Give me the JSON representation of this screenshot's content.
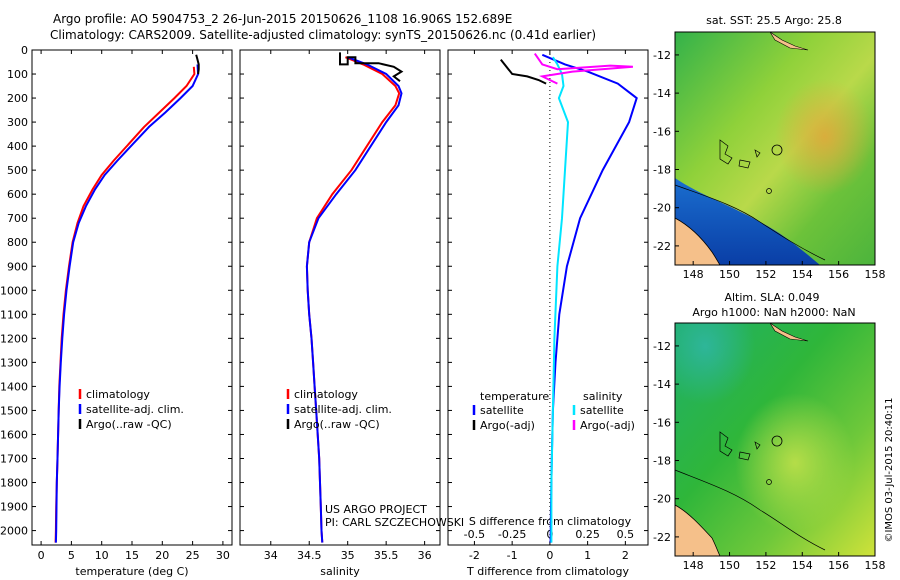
{
  "header": {
    "title_line1": "Argo profile: AO 5904753_2 26-Jun-2015 20150626_1108 16.906S 152.689E",
    "title_line2": "Climatology: CARS2009. Satellite-adjusted climatology: synTS_20150626.nc (0.41d earlier)"
  },
  "colors": {
    "climatology": "#ff0000",
    "satellite": "#0000ff",
    "argo": "#000000",
    "sal_satellite": "#00e5ff",
    "sal_argo": "#ff00ff"
  },
  "shared": {
    "depth_ticks": [
      0,
      100,
      200,
      300,
      400,
      500,
      600,
      700,
      800,
      900,
      1000,
      1100,
      1200,
      1300,
      1400,
      1500,
      1600,
      1700,
      1800,
      1900,
      2000
    ],
    "depth_range": [
      0,
      2060
    ]
  },
  "chart_data": [
    {
      "id": "temperature",
      "type": "line",
      "xlabel": "temperature (deg C)",
      "xlim": [
        -1.5,
        31.5
      ],
      "xticks": [
        0,
        5,
        10,
        15,
        20,
        25,
        30
      ],
      "ylim": [
        0,
        2060
      ],
      "legend": {
        "position": "lower-middle",
        "entries": [
          "climatology",
          "satellite-adj. clim.",
          "Argo(..raw -QC)"
        ]
      },
      "series": [
        {
          "name": "climatology",
          "points": [
            [
              25.2,
              70
            ],
            [
              25.3,
              100
            ],
            [
              24.0,
              150
            ],
            [
              22.0,
              200
            ],
            [
              19.5,
              260
            ],
            [
              17.0,
              320
            ],
            [
              14.5,
              390
            ],
            [
              12.0,
              460
            ],
            [
              10.0,
              520
            ],
            [
              8.5,
              580
            ],
            [
              7.0,
              650
            ],
            [
              6.0,
              720
            ],
            [
              5.2,
              800
            ],
            [
              4.6,
              900
            ],
            [
              4.1,
              1000
            ],
            [
              3.7,
              1100
            ],
            [
              3.4,
              1200
            ],
            [
              3.2,
              1300
            ],
            [
              3.0,
              1400
            ],
            [
              2.9,
              1500
            ],
            [
              2.8,
              1600
            ],
            [
              2.7,
              1700
            ],
            [
              2.6,
              1800
            ],
            [
              2.5,
              1900
            ],
            [
              2.45,
              2000
            ],
            [
              2.4,
              2050
            ]
          ]
        },
        {
          "name": "satellite-adj. clim.",
          "points": [
            [
              25.8,
              60
            ],
            [
              25.9,
              100
            ],
            [
              25.0,
              150
            ],
            [
              23.0,
              200
            ],
            [
              20.5,
              260
            ],
            [
              17.8,
              320
            ],
            [
              15.2,
              390
            ],
            [
              12.6,
              460
            ],
            [
              10.5,
              520
            ],
            [
              8.9,
              580
            ],
            [
              7.4,
              650
            ],
            [
              6.2,
              720
            ],
            [
              5.3,
              800
            ],
            [
              4.7,
              900
            ],
            [
              4.2,
              1000
            ],
            [
              3.8,
              1100
            ],
            [
              3.5,
              1200
            ],
            [
              3.25,
              1300
            ],
            [
              3.05,
              1400
            ],
            [
              2.9,
              1500
            ],
            [
              2.8,
              1600
            ],
            [
              2.7,
              1700
            ],
            [
              2.6,
              1800
            ],
            [
              2.55,
              1900
            ],
            [
              2.5,
              2000
            ],
            [
              2.45,
              2050
            ]
          ]
        },
        {
          "name": "Argo(..raw -QC)",
          "points": [
            [
              25.6,
              20
            ],
            [
              25.8,
              40
            ],
            [
              26.0,
              60
            ],
            [
              26.0,
              80
            ],
            [
              25.9,
              100
            ]
          ]
        }
      ]
    },
    {
      "id": "salinity",
      "type": "line",
      "xlabel": "salinity",
      "xlim": [
        33.6,
        36.2
      ],
      "xticks": [
        34,
        34.5,
        35,
        35.5,
        36
      ],
      "ylim": [
        0,
        2060
      ],
      "legend": {
        "position": "lower-middle",
        "entries": [
          "climatology",
          "satellite-adj. clim.",
          "Argo(..raw -QC)"
        ]
      },
      "annotations": [
        "US ARGO PROJECT",
        "PI: CARL SZCZECHOWSKI"
      ],
      "series": [
        {
          "name": "climatology",
          "points": [
            [
              34.97,
              30
            ],
            [
              35.2,
              60
            ],
            [
              35.45,
              100
            ],
            [
              35.62,
              150
            ],
            [
              35.67,
              180
            ],
            [
              35.62,
              230
            ],
            [
              35.45,
              300
            ],
            [
              35.25,
              400
            ],
            [
              35.05,
              500
            ],
            [
              34.8,
              600
            ],
            [
              34.6,
              700
            ],
            [
              34.5,
              800
            ],
            [
              34.47,
              900
            ],
            [
              34.48,
              1000
            ],
            [
              34.5,
              1100
            ],
            [
              34.53,
              1200
            ],
            [
              34.55,
              1300
            ],
            [
              34.57,
              1400
            ],
            [
              34.59,
              1500
            ],
            [
              34.61,
              1600
            ],
            [
              34.63,
              1700
            ],
            [
              34.64,
              1800
            ],
            [
              34.65,
              1900
            ],
            [
              34.66,
              2000
            ],
            [
              34.67,
              2050
            ]
          ]
        },
        {
          "name": "satellite-adj. clim.",
          "points": [
            [
              35.0,
              30
            ],
            [
              35.25,
              60
            ],
            [
              35.5,
              100
            ],
            [
              35.66,
              150
            ],
            [
              35.7,
              180
            ],
            [
              35.66,
              230
            ],
            [
              35.5,
              300
            ],
            [
              35.3,
              400
            ],
            [
              35.1,
              500
            ],
            [
              34.85,
              600
            ],
            [
              34.62,
              700
            ],
            [
              34.5,
              800
            ],
            [
              34.47,
              900
            ],
            [
              34.48,
              1000
            ],
            [
              34.5,
              1100
            ],
            [
              34.53,
              1200
            ],
            [
              34.55,
              1300
            ],
            [
              34.57,
              1400
            ],
            [
              34.59,
              1500
            ],
            [
              34.61,
              1600
            ],
            [
              34.63,
              1700
            ],
            [
              34.64,
              1800
            ],
            [
              34.65,
              1900
            ],
            [
              34.66,
              2000
            ],
            [
              34.67,
              2050
            ]
          ]
        },
        {
          "name": "Argo(..raw -QC)",
          "points": [
            [
              34.9,
              10
            ],
            [
              34.9,
              60
            ],
            [
              35.0,
              60
            ],
            [
              35.0,
              30
            ],
            [
              35.1,
              30
            ],
            [
              35.1,
              55
            ],
            [
              35.4,
              55
            ],
            [
              35.6,
              70
            ],
            [
              35.7,
              90
            ],
            [
              35.6,
              110
            ],
            [
              35.68,
              130
            ]
          ]
        }
      ]
    },
    {
      "id": "difference",
      "type": "line",
      "xlabel": "T difference from climatology",
      "xlabel_top": "S difference from climatology",
      "xlim": [
        -2.7,
        2.6
      ],
      "xticks": [
        -2,
        -1,
        0,
        1,
        2
      ],
      "xticks_top": [
        -0.5,
        -0.25,
        0,
        0.25,
        0.5
      ],
      "ylim": [
        0,
        2060
      ],
      "legend_temperature": {
        "title": "temperature",
        "entries": [
          "satellite",
          "Argo(-adj)"
        ]
      },
      "legend_salinity": {
        "title": "salinity",
        "entries": [
          "satellite",
          "Argo(-adj)"
        ]
      },
      "series": [
        {
          "name": "temperature satellite",
          "points": [
            [
              -0.2,
              20
            ],
            [
              0.4,
              60
            ],
            [
              1.0,
              90
            ],
            [
              1.8,
              140
            ],
            [
              2.3,
              200
            ],
            [
              2.1,
              300
            ],
            [
              1.4,
              500
            ],
            [
              0.8,
              700
            ],
            [
              0.45,
              900
            ],
            [
              0.25,
              1100
            ],
            [
              0.15,
              1300
            ],
            [
              0.08,
              1500
            ],
            [
              0.05,
              1700
            ],
            [
              0.03,
              1900
            ],
            [
              0.02,
              2050
            ]
          ]
        },
        {
          "name": "temperature Argo(-adj)",
          "points": [
            [
              -1.3,
              40
            ],
            [
              -1.1,
              80
            ],
            [
              -1.0,
              100
            ],
            [
              -0.6,
              110
            ],
            [
              -0.3,
              125
            ],
            [
              -0.1,
              140
            ]
          ]
        },
        {
          "name": "salinity satellite",
          "points": [
            [
              0.02,
              30
            ],
            [
              0.05,
              60
            ],
            [
              0.08,
              100
            ],
            [
              0.09,
              150
            ],
            [
              0.06,
              200
            ],
            [
              0.12,
              300
            ],
            [
              0.1,
              500
            ],
            [
              0.08,
              700
            ],
            [
              0.05,
              900
            ],
            [
              0.03,
              1200
            ],
            [
              0.02,
              1500
            ],
            [
              0.01,
              1800
            ],
            [
              0.01,
              2050
            ]
          ]
        },
        {
          "name": "salinity Argo(-adj)",
          "points": [
            [
              -0.1,
              15
            ],
            [
              -0.05,
              60
            ],
            [
              0.05,
              80
            ],
            [
              0.4,
              65
            ],
            [
              0.55,
              70
            ],
            [
              0.15,
              90
            ],
            [
              -0.05,
              110
            ],
            [
              0.05,
              140
            ]
          ]
        }
      ]
    }
  ],
  "maps": {
    "sst": {
      "title": "sat. SST: 25.5 Argo: 25.8",
      "xticks": [
        148,
        150,
        152,
        154,
        156,
        158
      ],
      "yticks": [
        -12,
        -14,
        -16,
        -18,
        -20,
        -22
      ]
    },
    "sla": {
      "title1": "Altim. SLA: 0.049",
      "title2": "Argo h1000: NaN h2000: NaN",
      "xticks": [
        148,
        150,
        152,
        154,
        156,
        158
      ],
      "yticks": [
        -12,
        -14,
        -16,
        -18,
        -20,
        -22
      ]
    },
    "stamp": "©IMOS 03-Jul-2015 20:40:11"
  }
}
